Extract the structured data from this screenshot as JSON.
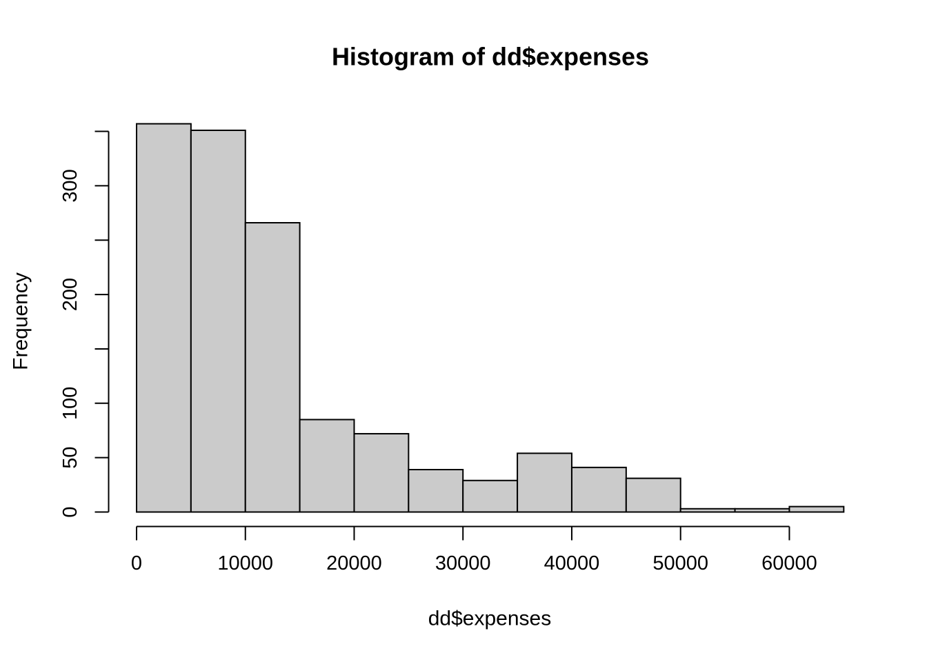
{
  "figure": {
    "title": "Histogram of dd$expenses",
    "xlabel": "dd$expenses",
    "ylabel": "Frequency"
  },
  "colors": {
    "background": "#ffffff",
    "bar_fill": "#cbcbcb",
    "bar_border": "#000000",
    "axis": "#000000",
    "text": "#000000"
  },
  "chart_data": {
    "type": "bar",
    "subtype": "histogram",
    "title": "Histogram of dd$expenses",
    "xlabel": "dd$expenses",
    "ylabel": "Frequency",
    "bin_width": 5000,
    "bin_edges": [
      0,
      5000,
      10000,
      15000,
      20000,
      25000,
      30000,
      35000,
      40000,
      45000,
      50000,
      55000,
      60000,
      65000
    ],
    "counts": [
      357,
      351,
      266,
      85,
      72,
      39,
      29,
      54,
      41,
      31,
      3,
      3,
      5
    ],
    "x_ticks": [
      0,
      10000,
      20000,
      30000,
      40000,
      50000,
      60000
    ],
    "x_tick_labels": [
      "0",
      "10000",
      "20000",
      "30000",
      "40000",
      "50000",
      "60000"
    ],
    "y_ticks": [
      0,
      50,
      100,
      150,
      200,
      250,
      300,
      350
    ],
    "y_tick_labels": [
      "0",
      "50",
      "100",
      "",
      "200",
      "",
      "300",
      ""
    ],
    "xlim": [
      0,
      65000
    ],
    "ylim": [
      0,
      350
    ],
    "grid": false,
    "legend": false
  }
}
